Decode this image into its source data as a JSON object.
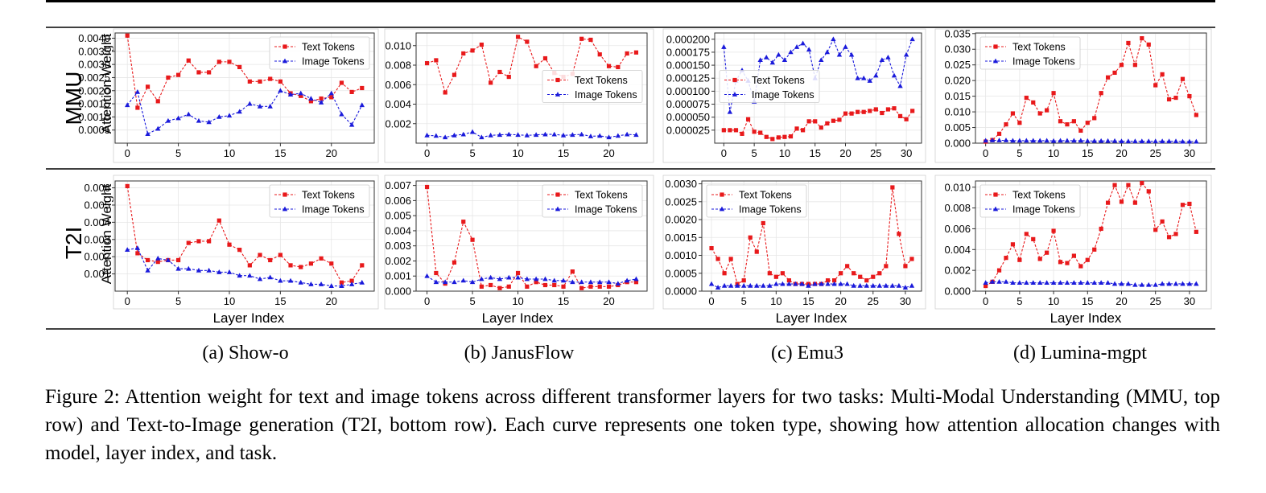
{
  "figure": {
    "caption": "Figure 2: Attention weight for text and image tokens across different transformer layers for two tasks: Multi-Modal Understanding (MMU, top row) and Text-to-Image generation (T2I, bottom row). Each curve represents one token type, showing how attention allocation changes with model, layer index, and task.",
    "row_labels": [
      "MMU",
      "T2I"
    ],
    "ylabel": "Attention Weight",
    "xlabel": "Layer Index",
    "subfigures": [
      "(a) Show-o",
      "(b) JanusFlow",
      "(c) Emu3",
      "(d) Lumina-mgpt"
    ],
    "colors": {
      "text": "#e8191b",
      "image": "#1a1adb"
    }
  },
  "chart_data": [
    {
      "type": "line",
      "panel": "MMU-a",
      "xlim": [
        -1.2,
        24.2
      ],
      "ylim": [
        0,
        0.0042
      ],
      "legend": "top-right",
      "grid": true,
      "xticks": [
        0,
        5,
        10,
        15,
        20
      ],
      "yticks": [
        0.0005,
        0.001,
        0.0015,
        0.002,
        0.0025,
        0.003,
        0.0035,
        0.004
      ],
      "ytick_labels": [
        "0.0005",
        "0.0010",
        "0.0015",
        "0.0020",
        "0.0025",
        "0.0030",
        "0.0035",
        "0.0040"
      ],
      "series": [
        {
          "name": "Text Tokens",
          "marker": "square",
          "values": [
            0.0041,
            0.00135,
            0.00215,
            0.0016,
            0.0025,
            0.0026,
            0.00315,
            0.0027,
            0.0027,
            0.0031,
            0.0031,
            0.0029,
            0.00235,
            0.00235,
            0.00245,
            0.00235,
            0.0019,
            0.0018,
            0.0016,
            0.0017,
            0.00175,
            0.0023,
            0.00195,
            0.0021
          ]
        },
        {
          "name": "Image Tokens",
          "marker": "triangle",
          "values": [
            0.00145,
            0.00195,
            0.00035,
            0.00055,
            0.00085,
            0.00095,
            0.0011,
            0.00085,
            0.0008,
            0.001,
            0.00105,
            0.0012,
            0.0015,
            0.0014,
            0.0014,
            0.002,
            0.00185,
            0.0019,
            0.0017,
            0.00155,
            0.0019,
            0.0011,
            0.0007,
            0.00145
          ]
        }
      ]
    },
    {
      "type": "line",
      "panel": "MMU-b",
      "xlim": [
        -1.2,
        24.2
      ],
      "ylim": [
        0,
        0.0113
      ],
      "legend": "center-right",
      "grid": true,
      "xticks": [
        0,
        5,
        10,
        15,
        20
      ],
      "yticks": [
        0.002,
        0.004,
        0.006,
        0.008,
        0.01
      ],
      "ytick_labels": [
        "0.002",
        "0.004",
        "0.006",
        "0.008",
        "0.010"
      ],
      "series": [
        {
          "name": "Text Tokens",
          "marker": "square",
          "values": [
            0.0082,
            0.0085,
            0.0052,
            0.007,
            0.0092,
            0.0095,
            0.0101,
            0.0062,
            0.0073,
            0.0068,
            0.0109,
            0.0104,
            0.0079,
            0.0087,
            0.0072,
            0.0068,
            0.0071,
            0.0107,
            0.0106,
            0.0091,
            0.0079,
            0.0078,
            0.0092,
            0.0093
          ]
        },
        {
          "name": "Image Tokens",
          "marker": "triangle",
          "values": [
            0.0008,
            0.00075,
            0.0006,
            0.0008,
            0.0009,
            0.00115,
            0.0006,
            0.0008,
            0.00085,
            0.0009,
            0.00085,
            0.0008,
            0.00085,
            0.0009,
            0.0009,
            0.0008,
            0.00085,
            0.0009,
            0.0007,
            0.00075,
            0.0006,
            0.00075,
            0.0009,
            0.00085
          ]
        }
      ]
    },
    {
      "type": "line",
      "panel": "MMU-c",
      "xlim": [
        -1.5,
        32.5
      ],
      "ylim": [
        0,
        0.000212
      ],
      "legend": "center-left",
      "grid": true,
      "xticks": [
        0,
        5,
        10,
        15,
        20,
        25,
        30
      ],
      "yticks": [
        2.5e-05,
        5e-05,
        7.5e-05,
        0.0001,
        0.000125,
        0.00015,
        0.000175,
        0.0002
      ],
      "ytick_labels": [
        "0.000025",
        "0.000050",
        "0.000075",
        "0.000100",
        "0.000125",
        "0.000150",
        "0.000175",
        "0.000200"
      ],
      "series": [
        {
          "name": "Text Tokens",
          "marker": "square",
          "values": [
            2.5e-05,
            2.5e-05,
            2.5e-05,
            1.8e-05,
            4.6e-05,
            2.2e-05,
            2e-05,
            1.2e-05,
            8e-06,
            1.1e-05,
            1.2e-05,
            1.3e-05,
            2.8e-05,
            2.5e-05,
            4.2e-05,
            4.2e-05,
            3e-05,
            3.8e-05,
            4.3e-05,
            4.5e-05,
            5.7e-05,
            5.7e-05,
            6e-05,
            6e-05,
            6.2e-05,
            6.5e-05,
            5.8e-05,
            6.5e-05,
            6.7e-05,
            5.2e-05,
            4.6e-05,
            6.2e-05
          ]
        },
        {
          "name": "Image Tokens",
          "marker": "triangle",
          "values": [
            0.000185,
            6e-05,
            0.00012,
            0.00014,
            0.00012,
            8e-05,
            0.00016,
            0.000165,
            0.000155,
            0.00017,
            0.00016,
            0.000175,
            0.000185,
            0.000192,
            0.00018,
            0.000125,
            0.00016,
            0.000175,
            0.0002,
            0.00017,
            0.000185,
            0.00017,
            0.000125,
            0.000125,
            0.00012,
            0.00013,
            0.00016,
            0.000165,
            0.00013,
            0.00011,
            0.00017,
            0.0002
          ]
        }
      ]
    },
    {
      "type": "line",
      "panel": "MMU-d",
      "xlim": [
        -1.5,
        32.5
      ],
      "ylim": [
        0,
        0.0352
      ],
      "legend": "top-left",
      "grid": true,
      "xticks": [
        0,
        5,
        10,
        15,
        20,
        25,
        30
      ],
      "yticks": [
        0.0,
        0.005,
        0.01,
        0.015,
        0.02,
        0.025,
        0.03,
        0.035
      ],
      "ytick_labels": [
        "0.000",
        "0.005",
        "0.010",
        "0.015",
        "0.020",
        "0.025",
        "0.030",
        "0.035"
      ],
      "series": [
        {
          "name": "Text Tokens",
          "marker": "square",
          "values": [
            0.0005,
            0.001,
            0.003,
            0.006,
            0.0095,
            0.0065,
            0.0145,
            0.013,
            0.0095,
            0.0105,
            0.016,
            0.007,
            0.006,
            0.007,
            0.004,
            0.0065,
            0.008,
            0.016,
            0.021,
            0.0225,
            0.025,
            0.032,
            0.025,
            0.0335,
            0.0315,
            0.0185,
            0.022,
            0.014,
            0.0145,
            0.0205,
            0.015,
            0.009
          ]
        },
        {
          "name": "Image Tokens",
          "marker": "triangle",
          "values": [
            0.0008,
            0.0009,
            0.0009,
            0.0009,
            0.0008,
            0.0008,
            0.0008,
            0.0008,
            0.0008,
            0.0008,
            0.0007,
            0.0008,
            0.0008,
            0.0008,
            0.0008,
            0.0007,
            0.0007,
            0.0007,
            0.0007,
            0.0007,
            0.0006,
            0.0006,
            0.0006,
            0.0006,
            0.0006,
            0.0006,
            0.0006,
            0.0006,
            0.0006,
            0.0005,
            0.0005,
            0.0005
          ]
        }
      ]
    },
    {
      "type": "line",
      "panel": "T2I-a",
      "xlim": [
        -1.2,
        24.2
      ],
      "ylim": [
        0,
        0.0064
      ],
      "legend": "top-right",
      "grid": true,
      "xticks": [
        0,
        5,
        10,
        15,
        20
      ],
      "yticks": [
        0.001,
        0.002,
        0.003,
        0.004,
        0.005,
        0.006
      ],
      "ytick_labels": [
        "0.001",
        "0.002",
        "0.003",
        "0.004",
        "0.005",
        "0.006"
      ],
      "series": [
        {
          "name": "Text Tokens",
          "marker": "square",
          "values": [
            0.0061,
            0.0022,
            0.0018,
            0.0017,
            0.0018,
            0.0018,
            0.0028,
            0.0029,
            0.0029,
            0.0041,
            0.0027,
            0.0024,
            0.0015,
            0.0021,
            0.0018,
            0.0021,
            0.0015,
            0.0014,
            0.0016,
            0.0019,
            0.0016,
            0.0005,
            0.0006,
            0.0015
          ]
        },
        {
          "name": "Image Tokens",
          "marker": "triangle",
          "values": [
            0.0024,
            0.0025,
            0.0012,
            0.0019,
            0.0018,
            0.0013,
            0.0013,
            0.0012,
            0.0012,
            0.0011,
            0.0011,
            0.0009,
            0.0009,
            0.0007,
            0.0008,
            0.0006,
            0.0006,
            0.0005,
            0.0004,
            0.0004,
            0.0003,
            0.0003,
            0.0004,
            0.0005
          ]
        }
      ]
    },
    {
      "type": "line",
      "panel": "T2I-b",
      "xlim": [
        -1.2,
        24.2
      ],
      "ylim": [
        0,
        0.0073
      ],
      "legend": "top-right",
      "grid": true,
      "xticks": [
        0,
        5,
        10,
        15,
        20
      ],
      "yticks": [
        0.0,
        0.001,
        0.002,
        0.003,
        0.004,
        0.005,
        0.006,
        0.007
      ],
      "ytick_labels": [
        "0.000",
        "0.001",
        "0.002",
        "0.003",
        "0.004",
        "0.005",
        "0.006",
        "0.007"
      ],
      "series": [
        {
          "name": "Text Tokens",
          "marker": "square",
          "values": [
            0.0069,
            0.0012,
            0.0005,
            0.0019,
            0.0046,
            0.0034,
            0.0003,
            0.0004,
            0.0002,
            0.0003,
            0.0012,
            0.0003,
            0.0006,
            0.0004,
            0.0004,
            0.0003,
            0.0013,
            0.0002,
            0.0003,
            0.0003,
            0.0003,
            0.0004,
            0.0006,
            0.0006
          ]
        },
        {
          "name": "Image Tokens",
          "marker": "triangle",
          "values": [
            0.001,
            0.0006,
            0.0006,
            0.0006,
            0.0007,
            0.0006,
            0.0008,
            0.0009,
            0.0008,
            0.0009,
            0.0009,
            0.0008,
            0.0008,
            0.0008,
            0.0007,
            0.0007,
            0.0006,
            0.0006,
            0.0006,
            0.0006,
            0.0006,
            0.0005,
            0.0007,
            0.0008
          ]
        }
      ]
    },
    {
      "type": "line",
      "panel": "T2I-c",
      "xlim": [
        -1.5,
        32.5
      ],
      "ylim": [
        0,
        0.00308
      ],
      "legend": "top-left",
      "grid": true,
      "xticks": [
        0,
        5,
        10,
        15,
        20,
        25,
        30
      ],
      "yticks": [
        0.0,
        0.0005,
        0.001,
        0.0015,
        0.002,
        0.0025,
        0.003
      ],
      "ytick_labels": [
        "0.0000",
        "0.0005",
        "0.0010",
        "0.0015",
        "0.0020",
        "0.0025",
        "0.0030"
      ],
      "series": [
        {
          "name": "Text Tokens",
          "marker": "square",
          "values": [
            0.0012,
            0.0009,
            0.0005,
            0.0009,
            0.0002,
            0.0003,
            0.0015,
            0.0011,
            0.0019,
            0.0005,
            0.0004,
            0.0005,
            0.0003,
            0.0002,
            0.0002,
            0.0002,
            0.0002,
            0.0002,
            0.0003,
            0.0003,
            0.0005,
            0.0007,
            0.0005,
            0.0004,
            0.0003,
            0.0004,
            0.0005,
            0.0007,
            0.0029,
            0.0016,
            0.0007,
            0.0009
          ]
        },
        {
          "name": "Image Tokens",
          "marker": "triangle",
          "values": [
            0.0002,
            0.0001,
            0.00015,
            0.00015,
            0.00015,
            0.00015,
            0.00015,
            0.00015,
            0.00015,
            0.00015,
            0.0002,
            0.0002,
            0.0002,
            0.0002,
            0.0002,
            0.00015,
            0.0002,
            0.0002,
            0.0002,
            0.0002,
            0.0002,
            0.0002,
            0.00015,
            0.00015,
            0.00015,
            0.00015,
            0.00015,
            0.00015,
            0.00015,
            0.00015,
            0.0001,
            0.00015
          ]
        }
      ]
    },
    {
      "type": "line",
      "panel": "T2I-d",
      "xlim": [
        -1.5,
        32.5
      ],
      "ylim": [
        0,
        0.0106
      ],
      "legend": "top-left",
      "grid": true,
      "xticks": [
        0,
        5,
        10,
        15,
        20,
        25,
        30
      ],
      "yticks": [
        0.0,
        0.002,
        0.004,
        0.006,
        0.008,
        0.01
      ],
      "ytick_labels": [
        "0.000",
        "0.002",
        "0.004",
        "0.006",
        "0.008",
        "0.010"
      ],
      "series": [
        {
          "name": "Text Tokens",
          "marker": "square",
          "values": [
            0.0005,
            0.0009,
            0.002,
            0.0032,
            0.0045,
            0.003,
            0.0055,
            0.005,
            0.0031,
            0.0037,
            0.0058,
            0.0028,
            0.0027,
            0.0034,
            0.0024,
            0.003,
            0.004,
            0.006,
            0.0085,
            0.0102,
            0.0086,
            0.0102,
            0.0085,
            0.0104,
            0.0096,
            0.0059,
            0.0067,
            0.0052,
            0.0055,
            0.0083,
            0.0084,
            0.0057
          ]
        },
        {
          "name": "Image Tokens",
          "marker": "triangle",
          "values": [
            0.0008,
            0.0009,
            0.0009,
            0.0009,
            0.0008,
            0.0008,
            0.0008,
            0.0008,
            0.0008,
            0.0008,
            0.0008,
            0.0008,
            0.0008,
            0.0008,
            0.0008,
            0.0008,
            0.0008,
            0.0008,
            0.0008,
            0.0007,
            0.0007,
            0.0007,
            0.0006,
            0.0006,
            0.0006,
            0.0006,
            0.0007,
            0.0007,
            0.0007,
            0.0007,
            0.0007,
            0.0007
          ]
        }
      ]
    }
  ]
}
